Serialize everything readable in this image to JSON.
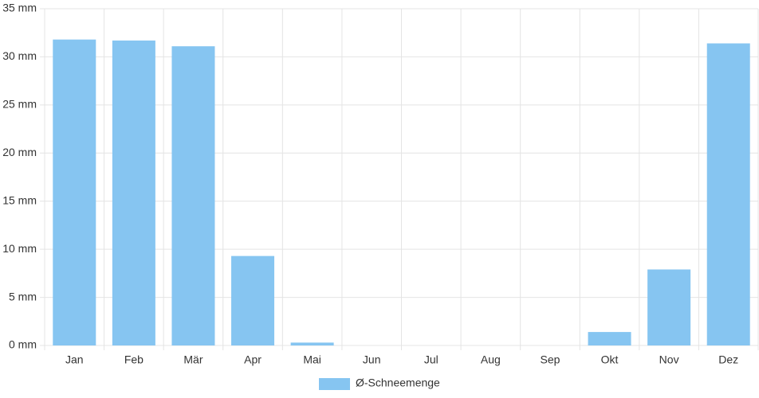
{
  "chart_data": {
    "type": "bar",
    "categories": [
      "Jan",
      "Feb",
      "Mär",
      "Apr",
      "Mai",
      "Jun",
      "Jul",
      "Aug",
      "Sep",
      "Okt",
      "Nov",
      "Dez"
    ],
    "series": [
      {
        "name": "Ø-Schneemenge",
        "color": "#86c5f1",
        "values": [
          31.8,
          31.7,
          31.1,
          9.3,
          0.3,
          0,
          0,
          0,
          0,
          1.4,
          7.9,
          31.4
        ]
      }
    ],
    "ylim": [
      0,
      35
    ],
    "yticks": [
      {
        "value": 0,
        "label": "0 mm"
      },
      {
        "value": 5,
        "label": "5 mm"
      },
      {
        "value": 10,
        "label": "10 mm"
      },
      {
        "value": 15,
        "label": "15 mm"
      },
      {
        "value": 20,
        "label": "20 mm"
      },
      {
        "value": 25,
        "label": "25 mm"
      },
      {
        "value": 30,
        "label": "30 mm"
      },
      {
        "value": 35,
        "label": "35 mm"
      }
    ],
    "grid": true,
    "legend": "bottom"
  }
}
